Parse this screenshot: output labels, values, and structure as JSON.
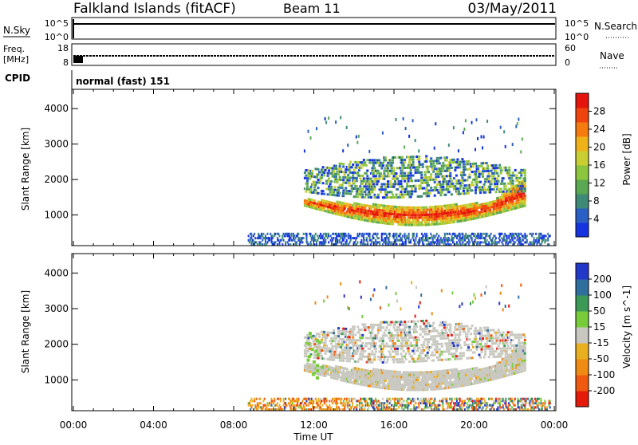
{
  "header": {
    "title": "Falkland Islands (fitACF)",
    "beam": "Beam 11",
    "date": "03/May/2011"
  },
  "status_panels": {
    "nsky_label": "N.Sky",
    "nsky_ticks": [
      "10^5",
      "10^0"
    ],
    "nsearch_label": "N.Search",
    "freq_label_line1": "Freq.",
    "freq_label_line2": "[MHz]",
    "freq_ticks": [
      "18",
      "8"
    ],
    "nave_label": "Nave",
    "nave_ticks": [
      "60",
      "0"
    ],
    "cpid_label": "CPID",
    "cpid_value": "normal (fast) 151"
  },
  "chart_data": [
    {
      "type": "heatmap",
      "name": "power",
      "xlabel": "Time UT",
      "ylabel": "Slant Range [km]",
      "xlim": [
        0,
        24
      ],
      "ylim": [
        180,
        4500
      ],
      "x_tick_labels": [
        "00:00",
        "04:00",
        "08:00",
        "12:00",
        "16:00",
        "20:00",
        "00:00"
      ],
      "y_ticks": [
        1000,
        2000,
        3000,
        4000
      ],
      "colorbar_label": "Power [dB]",
      "colorbar_ticks": [
        4,
        8,
        12,
        16,
        20,
        24,
        28
      ],
      "colors": [
        "#1533e0",
        "#2a5fc4",
        "#3f8a76",
        "#5aa851",
        "#8cc63f",
        "#c9cf32",
        "#f0b21a",
        "#f57a10",
        "#f0440e",
        "#e5140c"
      ],
      "echo_region": {
        "start_hr": 11.5,
        "end_hr": 22.5,
        "main_band_km": [
          700,
          1400
        ],
        "upper_band_km": [
          1700,
          2700
        ]
      }
    },
    {
      "type": "heatmap",
      "name": "velocity",
      "xlabel": "Time UT",
      "ylabel": "Slant Range [km]",
      "xlim": [
        0,
        24
      ],
      "ylim": [
        180,
        4500
      ],
      "x_tick_labels": [
        "00:00",
        "04:00",
        "08:00",
        "12:00",
        "16:00",
        "20:00",
        "00:00"
      ],
      "y_ticks": [
        1000,
        2000,
        3000,
        4000
      ],
      "colorbar_label": "Velocity [m s^-1]",
      "colorbar_ticks": [
        200,
        100,
        50,
        15,
        -15,
        -50,
        -100,
        -200
      ],
      "colors": [
        "#2238c8",
        "#2f6f9c",
        "#3d9a56",
        "#78cc3a",
        "#c8c8c0",
        "#e8b020",
        "#ef8a12",
        "#f05a10",
        "#e61a0a"
      ],
      "ground_color": "#c8c8c0"
    }
  ],
  "axes": {
    "xlabel": "Time UT"
  }
}
